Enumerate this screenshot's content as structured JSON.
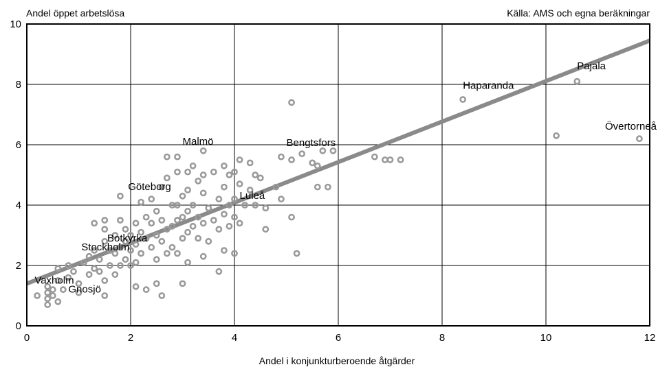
{
  "chart_data": {
    "type": "scatter",
    "ylabel": "Andel öppet arbetslösa",
    "xlabel": "Andel i konjunkturberoende åtgärder",
    "source": "Källa: AMS och egna beräkningar",
    "xlim": [
      0,
      12
    ],
    "ylim": [
      0,
      10
    ],
    "x_ticks": [
      0,
      2,
      4,
      6,
      8,
      10,
      12
    ],
    "y_ticks": [
      0,
      2,
      4,
      6,
      8,
      10
    ],
    "grid": true,
    "legend": "none",
    "colors": {
      "points": "#9a9a9a",
      "trend": "#8a8a8a",
      "grid": "#000000"
    },
    "trend_line": {
      "x": [
        0,
        12
      ],
      "y": [
        1.4,
        9.45
      ]
    },
    "points": [
      {
        "x": 0.2,
        "y": 1.0
      },
      {
        "x": 0.4,
        "y": 0.7
      },
      {
        "x": 0.4,
        "y": 0.9
      },
      {
        "x": 0.4,
        "y": 1.1
      },
      {
        "x": 0.4,
        "y": 1.3
      },
      {
        "x": 0.5,
        "y": 1.0
      },
      {
        "x": 0.5,
        "y": 1.2
      },
      {
        "x": 0.6,
        "y": 0.8
      },
      {
        "x": 0.6,
        "y": 1.5
      },
      {
        "x": 0.6,
        "y": 1.9
      },
      {
        "x": 0.7,
        "y": 1.2
      },
      {
        "x": 0.8,
        "y": 1.6
      },
      {
        "x": 0.8,
        "y": 2.0
      },
      {
        "x": 0.9,
        "y": 1.8
      },
      {
        "x": 1.0,
        "y": 1.1
      },
      {
        "x": 1.0,
        "y": 1.4
      },
      {
        "x": 1.1,
        "y": 2.1
      },
      {
        "x": 1.2,
        "y": 1.7
      },
      {
        "x": 1.2,
        "y": 2.3
      },
      {
        "x": 1.3,
        "y": 1.9
      },
      {
        "x": 1.3,
        "y": 3.4
      },
      {
        "x": 1.3,
        "y": 2.5
      },
      {
        "x": 1.4,
        "y": 2.2
      },
      {
        "x": 1.4,
        "y": 1.8
      },
      {
        "x": 1.5,
        "y": 3.2
      },
      {
        "x": 1.5,
        "y": 3.5
      },
      {
        "x": 1.5,
        "y": 2.8
      },
      {
        "x": 1.5,
        "y": 1.5
      },
      {
        "x": 1.5,
        "y": 1.0
      },
      {
        "x": 1.6,
        "y": 2.5
      },
      {
        "x": 1.6,
        "y": 2.0
      },
      {
        "x": 1.7,
        "y": 3.0
      },
      {
        "x": 1.7,
        "y": 2.4
      },
      {
        "x": 1.7,
        "y": 1.7
      },
      {
        "x": 1.8,
        "y": 4.3
      },
      {
        "x": 1.8,
        "y": 3.5
      },
      {
        "x": 1.8,
        "y": 2.6
      },
      {
        "x": 1.8,
        "y": 2.0
      },
      {
        "x": 1.9,
        "y": 3.2
      },
      {
        "x": 1.9,
        "y": 2.8
      },
      {
        "x": 1.9,
        "y": 2.2
      },
      {
        "x": 2.0,
        "y": 3.0
      },
      {
        "x": 2.0,
        "y": 2.5
      },
      {
        "x": 2.0,
        "y": 2.0
      },
      {
        "x": 2.1,
        "y": 3.4
      },
      {
        "x": 2.1,
        "y": 2.7
      },
      {
        "x": 2.1,
        "y": 2.1
      },
      {
        "x": 2.1,
        "y": 1.3
      },
      {
        "x": 2.2,
        "y": 4.1
      },
      {
        "x": 2.2,
        "y": 3.1
      },
      {
        "x": 2.2,
        "y": 2.4
      },
      {
        "x": 2.3,
        "y": 3.6
      },
      {
        "x": 2.3,
        "y": 2.9
      },
      {
        "x": 2.3,
        "y": 1.2
      },
      {
        "x": 2.4,
        "y": 4.2
      },
      {
        "x": 2.4,
        "y": 3.4
      },
      {
        "x": 2.4,
        "y": 2.6
      },
      {
        "x": 2.5,
        "y": 3.8
      },
      {
        "x": 2.5,
        "y": 3.0
      },
      {
        "x": 2.5,
        "y": 2.2
      },
      {
        "x": 2.5,
        "y": 1.4
      },
      {
        "x": 2.6,
        "y": 4.6
      },
      {
        "x": 2.6,
        "y": 3.5
      },
      {
        "x": 2.6,
        "y": 2.8
      },
      {
        "x": 2.6,
        "y": 1.0
      },
      {
        "x": 2.7,
        "y": 5.6
      },
      {
        "x": 2.7,
        "y": 4.9
      },
      {
        "x": 2.7,
        "y": 3.2
      },
      {
        "x": 2.7,
        "y": 2.4
      },
      {
        "x": 2.8,
        "y": 4.0
      },
      {
        "x": 2.8,
        "y": 3.3
      },
      {
        "x": 2.8,
        "y": 2.6
      },
      {
        "x": 2.9,
        "y": 5.6
      },
      {
        "x": 2.9,
        "y": 5.1
      },
      {
        "x": 2.9,
        "y": 4.0
      },
      {
        "x": 2.9,
        "y": 3.5
      },
      {
        "x": 2.9,
        "y": 2.4
      },
      {
        "x": 3.0,
        "y": 4.3
      },
      {
        "x": 3.0,
        "y": 3.6
      },
      {
        "x": 3.0,
        "y": 2.9
      },
      {
        "x": 3.0,
        "y": 1.4
      },
      {
        "x": 3.1,
        "y": 5.1
      },
      {
        "x": 3.1,
        "y": 4.5
      },
      {
        "x": 3.1,
        "y": 3.8
      },
      {
        "x": 3.1,
        "y": 3.1
      },
      {
        "x": 3.1,
        "y": 2.1
      },
      {
        "x": 3.2,
        "y": 5.3
      },
      {
        "x": 3.2,
        "y": 4.0
      },
      {
        "x": 3.2,
        "y": 3.3
      },
      {
        "x": 3.3,
        "y": 4.8
      },
      {
        "x": 3.3,
        "y": 3.6
      },
      {
        "x": 3.3,
        "y": 2.9
      },
      {
        "x": 3.4,
        "y": 5.8
      },
      {
        "x": 3.4,
        "y": 5.0
      },
      {
        "x": 3.4,
        "y": 4.4
      },
      {
        "x": 3.4,
        "y": 3.4
      },
      {
        "x": 3.4,
        "y": 2.3
      },
      {
        "x": 3.5,
        "y": 3.9
      },
      {
        "x": 3.5,
        "y": 2.8
      },
      {
        "x": 3.6,
        "y": 5.1
      },
      {
        "x": 3.6,
        "y": 3.5
      },
      {
        "x": 3.7,
        "y": 4.2
      },
      {
        "x": 3.7,
        "y": 3.2
      },
      {
        "x": 3.7,
        "y": 1.8
      },
      {
        "x": 3.8,
        "y": 5.3
      },
      {
        "x": 3.8,
        "y": 4.6
      },
      {
        "x": 3.8,
        "y": 3.7
      },
      {
        "x": 3.8,
        "y": 2.5
      },
      {
        "x": 3.9,
        "y": 5.0
      },
      {
        "x": 3.9,
        "y": 4.0
      },
      {
        "x": 3.9,
        "y": 3.3
      },
      {
        "x": 4.0,
        "y": 5.1
      },
      {
        "x": 4.0,
        "y": 4.2
      },
      {
        "x": 4.0,
        "y": 3.6
      },
      {
        "x": 4.0,
        "y": 2.4
      },
      {
        "x": 4.1,
        "y": 5.5
      },
      {
        "x": 4.1,
        "y": 4.7
      },
      {
        "x": 4.1,
        "y": 3.4
      },
      {
        "x": 4.2,
        "y": 4.0
      },
      {
        "x": 4.3,
        "y": 5.4
      },
      {
        "x": 4.3,
        "y": 4.5
      },
      {
        "x": 4.4,
        "y": 5.0
      },
      {
        "x": 4.4,
        "y": 4.0
      },
      {
        "x": 4.5,
        "y": 4.9
      },
      {
        "x": 4.6,
        "y": 3.9
      },
      {
        "x": 4.6,
        "y": 3.2
      },
      {
        "x": 4.8,
        "y": 4.6
      },
      {
        "x": 4.9,
        "y": 5.6
      },
      {
        "x": 4.9,
        "y": 4.2
      },
      {
        "x": 5.1,
        "y": 7.4
      },
      {
        "x": 5.1,
        "y": 5.5
      },
      {
        "x": 5.1,
        "y": 3.6
      },
      {
        "x": 5.2,
        "y": 2.4
      },
      {
        "x": 5.3,
        "y": 5.7
      },
      {
        "x": 5.5,
        "y": 5.4
      },
      {
        "x": 5.6,
        "y": 5.3
      },
      {
        "x": 5.6,
        "y": 4.6
      },
      {
        "x": 5.7,
        "y": 5.8
      },
      {
        "x": 5.8,
        "y": 4.6
      },
      {
        "x": 5.9,
        "y": 5.8
      },
      {
        "x": 6.7,
        "y": 5.6
      },
      {
        "x": 6.9,
        "y": 5.5
      },
      {
        "x": 7.0,
        "y": 5.5
      },
      {
        "x": 7.2,
        "y": 5.5
      },
      {
        "x": 8.4,
        "y": 7.5
      },
      {
        "x": 10.2,
        "y": 6.3
      },
      {
        "x": 10.6,
        "y": 8.1
      },
      {
        "x": 11.8,
        "y": 6.2
      }
    ],
    "annotations": [
      {
        "text": "Vaxholm",
        "x": 0.15,
        "y": 1.4
      },
      {
        "text": "Gnosjö",
        "x": 0.8,
        "y": 1.1
      },
      {
        "text": "Stockholm",
        "x": 1.05,
        "y": 2.5
      },
      {
        "text": "Botkyrka",
        "x": 1.55,
        "y": 2.8
      },
      {
        "text": "Göteborg",
        "x": 1.95,
        "y": 4.5
      },
      {
        "text": "Malmö",
        "x": 3.0,
        "y": 6.0
      },
      {
        "text": "Luleå",
        "x": 4.1,
        "y": 4.2
      },
      {
        "text": "Bengtsfors",
        "x": 5.0,
        "y": 5.95
      },
      {
        "text": "Haparanda",
        "x": 8.4,
        "y": 7.85
      },
      {
        "text": "Pajala",
        "x": 10.6,
        "y": 8.5
      },
      {
        "text": "Övertorneå",
        "x": 11.45,
        "y": 6.5
      }
    ]
  }
}
